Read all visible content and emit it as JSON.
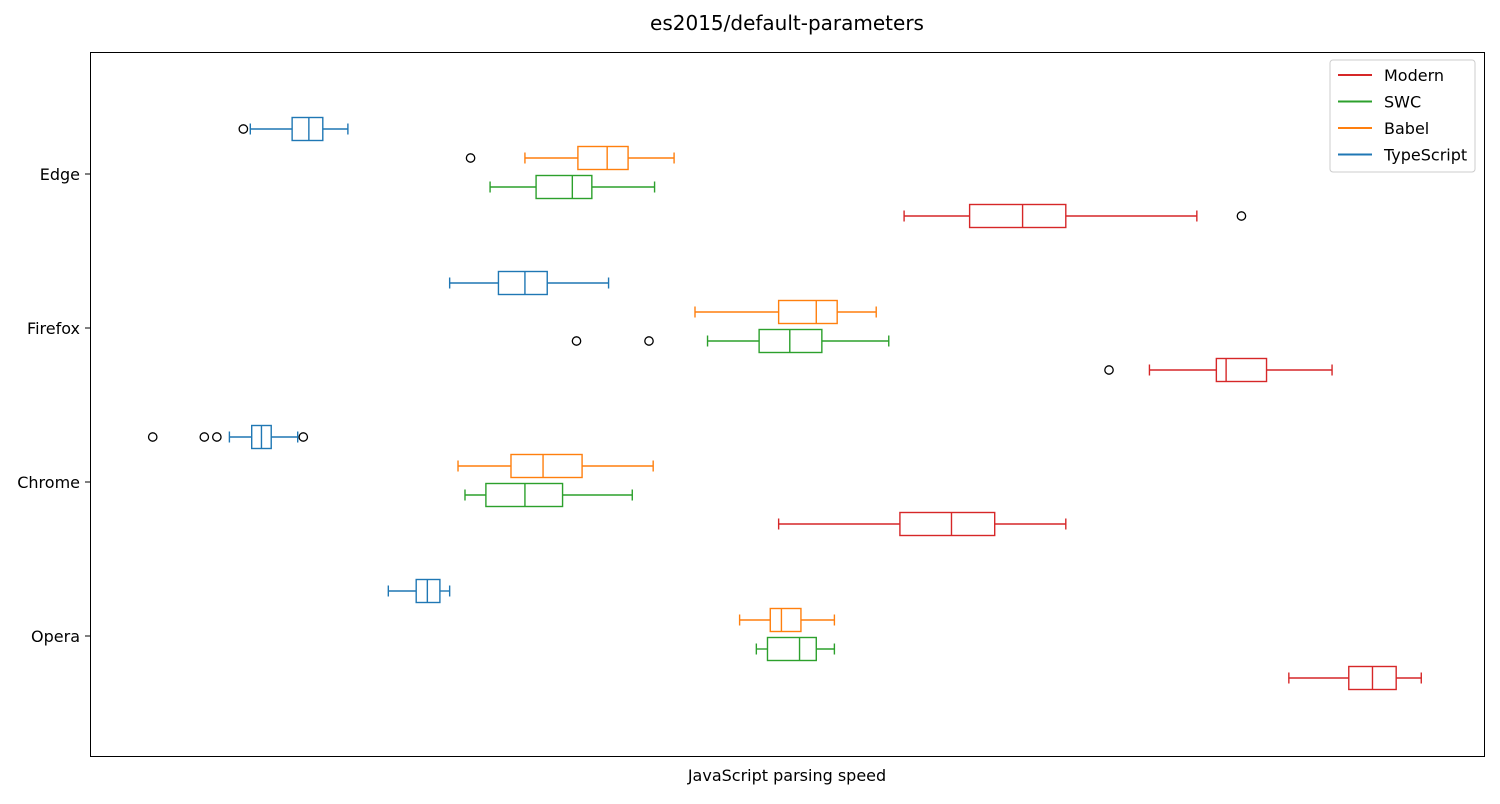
{
  "chart_data": {
    "type": "box",
    "orientation": "horizontal",
    "title": "es2015/default-parameters",
    "xlabel": "JavaScript parsing speed",
    "ylabel": "",
    "xticks_shown": false,
    "xlim": [
      0,
      100
    ],
    "grid": false,
    "legend_position": "top-right",
    "categories": [
      "Edge",
      "Firefox",
      "Chrome",
      "Opera"
    ],
    "series": [
      {
        "name": "TypeScript",
        "color": "#1f77b4",
        "boxes": [
          {
            "category": "Edge",
            "whislo": 11.5,
            "q1": 14.5,
            "med": 15.7,
            "q3": 16.7,
            "whishi": 18.5,
            "fliers": [
              11.0
            ]
          },
          {
            "category": "Firefox",
            "whislo": 25.8,
            "q1": 29.3,
            "med": 31.2,
            "q3": 32.8,
            "whishi": 37.2,
            "fliers": []
          },
          {
            "category": "Chrome",
            "whislo": 10.0,
            "q1": 11.6,
            "med": 12.3,
            "q3": 13.0,
            "whishi": 14.9,
            "fliers": [
              4.5,
              8.2,
              9.1,
              15.3
            ]
          },
          {
            "category": "Opera",
            "whislo": 21.4,
            "q1": 23.4,
            "med": 24.2,
            "q3": 25.1,
            "whishi": 25.8,
            "fliers": []
          }
        ]
      },
      {
        "name": "Babel",
        "color": "#ff7f0e",
        "boxes": [
          {
            "category": "Edge",
            "whislo": 31.2,
            "q1": 35.0,
            "med": 37.1,
            "q3": 38.6,
            "whishi": 41.9,
            "fliers": [
              27.3
            ]
          },
          {
            "category": "Firefox",
            "whislo": 43.4,
            "q1": 49.4,
            "med": 52.1,
            "q3": 53.6,
            "whishi": 56.4,
            "fliers": []
          },
          {
            "category": "Chrome",
            "whislo": 26.4,
            "q1": 30.2,
            "med": 32.5,
            "q3": 35.3,
            "whishi": 40.4,
            "fliers": []
          },
          {
            "category": "Opera",
            "whislo": 46.6,
            "q1": 48.8,
            "med": 49.6,
            "q3": 51.0,
            "whishi": 53.4,
            "fliers": []
          }
        ]
      },
      {
        "name": "SWC",
        "color": "#2ca02c",
        "boxes": [
          {
            "category": "Edge",
            "whislo": 28.7,
            "q1": 32.0,
            "med": 34.6,
            "q3": 36.0,
            "whishi": 40.5,
            "fliers": []
          },
          {
            "category": "Firefox",
            "whislo": 44.3,
            "q1": 48.0,
            "med": 50.2,
            "q3": 52.5,
            "whishi": 57.3,
            "fliers": [
              34.9,
              40.1
            ]
          },
          {
            "category": "Chrome",
            "whislo": 26.9,
            "q1": 28.4,
            "med": 31.2,
            "q3": 33.9,
            "whishi": 38.9,
            "fliers": []
          },
          {
            "category": "Opera",
            "whislo": 47.8,
            "q1": 48.6,
            "med": 50.9,
            "q3": 52.1,
            "whishi": 53.4,
            "fliers": []
          }
        ]
      },
      {
        "name": "Modern",
        "color": "#d62728",
        "boxes": [
          {
            "category": "Edge",
            "whislo": 58.4,
            "q1": 63.1,
            "med": 66.9,
            "q3": 70.0,
            "whishi": 79.4,
            "fliers": [
              82.6
            ]
          },
          {
            "category": "Firefox",
            "whislo": 76.0,
            "q1": 80.8,
            "med": 81.5,
            "q3": 84.4,
            "whishi": 89.1,
            "fliers": [
              73.1
            ]
          },
          {
            "category": "Chrome",
            "whislo": 49.4,
            "q1": 58.1,
            "med": 61.8,
            "q3": 64.9,
            "whishi": 70.0,
            "fliers": []
          },
          {
            "category": "Opera",
            "whislo": 86.0,
            "q1": 90.3,
            "med": 92.0,
            "q3": 93.7,
            "whishi": 95.5,
            "fliers": []
          }
        ]
      }
    ],
    "legend": [
      "Modern",
      "SWC",
      "Babel",
      "TypeScript"
    ]
  }
}
